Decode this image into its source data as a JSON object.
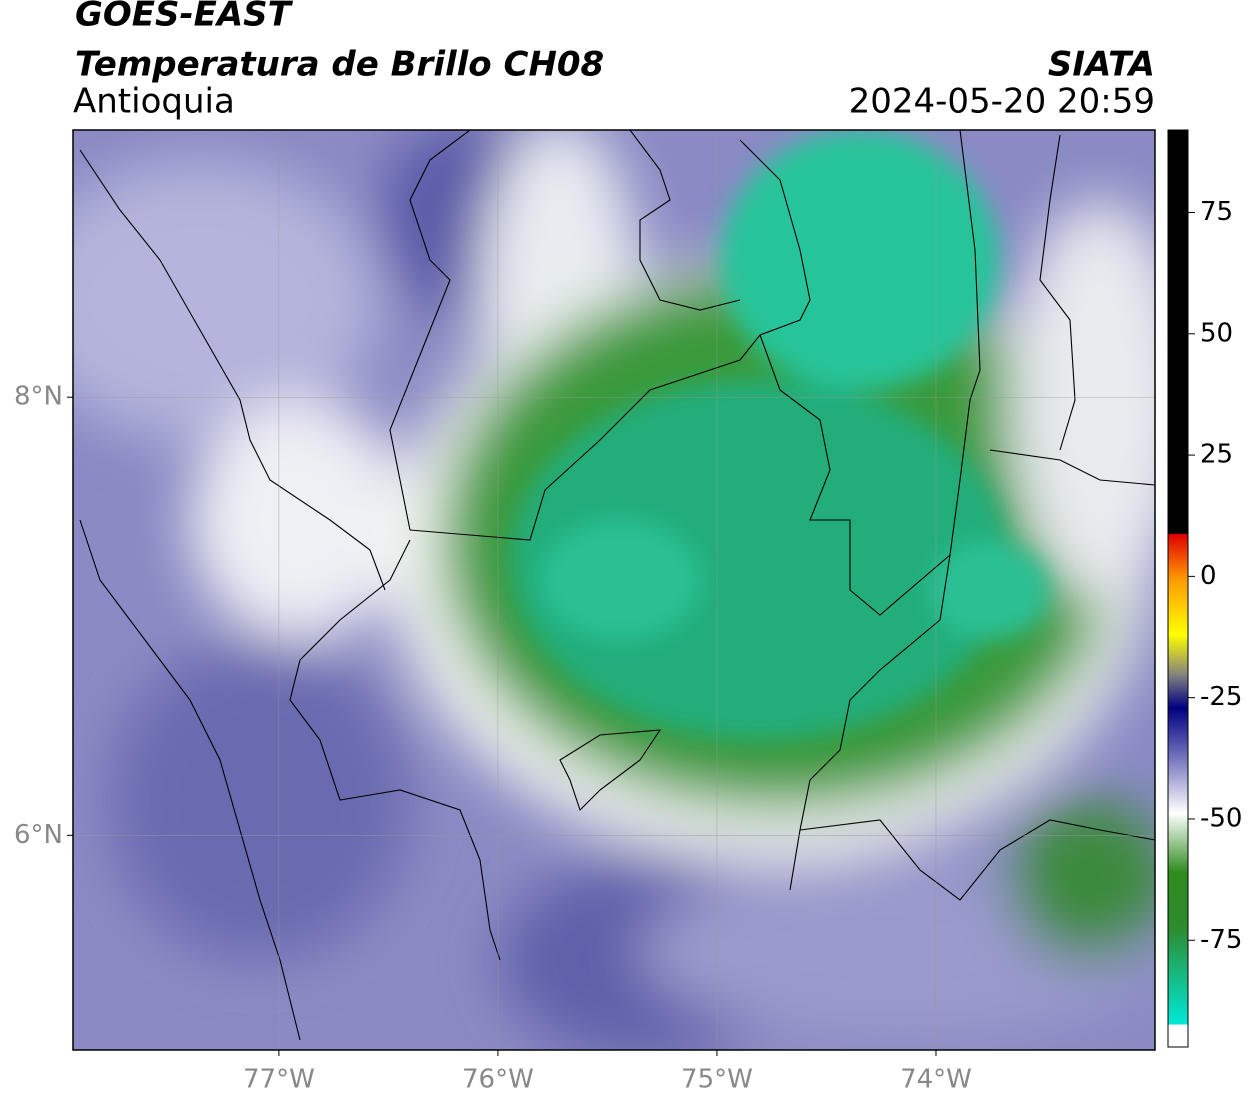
{
  "header": {
    "title": "GOES-EAST",
    "subtitle": "Temperatura de Brillo CH08",
    "region": "Antioquia",
    "source": "SIATA",
    "timestamp": "2024-05-20 20:59"
  },
  "map": {
    "xlim": [
      -77.94,
      -73.0
    ],
    "ylim": [
      5.02,
      9.22
    ],
    "xticks": [
      {
        "value": -77,
        "label": "77°W"
      },
      {
        "value": -76,
        "label": "76°W"
      },
      {
        "value": -75,
        "label": "75°W"
      },
      {
        "value": -74,
        "label": "74°W"
      }
    ],
    "yticks": [
      {
        "value": 6,
        "label": "6°N"
      },
      {
        "value": 8,
        "label": "8°N"
      }
    ],
    "grid": true
  },
  "colorbar": {
    "lim": [
      -97,
      92
    ],
    "ticks": [
      -75,
      -50,
      -25,
      0,
      25,
      50,
      75
    ]
  }
}
